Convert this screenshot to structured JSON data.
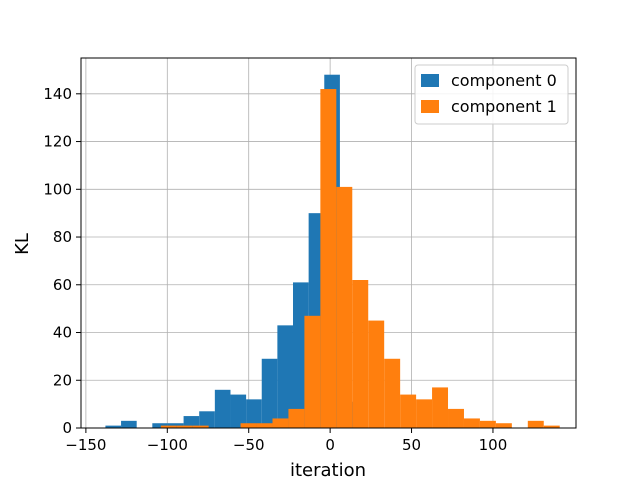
{
  "chart_data": {
    "type": "histogram",
    "xlabel": "iteration",
    "ylabel": "KL",
    "xlim": [
      -153,
      151
    ],
    "ylim": [
      0,
      155
    ],
    "xticks": [
      -150,
      -100,
      -50,
      0,
      50,
      100
    ],
    "xtick_labels": [
      "−150",
      "−100",
      "−50",
      "0",
      "50",
      "100"
    ],
    "yticks": [
      0,
      20,
      40,
      60,
      80,
      100,
      120,
      140
    ],
    "ytick_labels": [
      "0",
      "20",
      "40",
      "60",
      "80",
      "100",
      "120",
      "140"
    ],
    "grid": true,
    "legend_position": "upper right",
    "series": [
      {
        "name": "component 0",
        "color": "#1f77b4",
        "bin_edges": [
          -138,
          -128.4,
          -118.8,
          -109.2,
          -99.6,
          -90,
          -80.4,
          -70.8,
          -61.2,
          -51.6,
          -42,
          -32.4,
          -22.8,
          -13.2,
          -3.6,
          6,
          15.6
        ],
        "counts": [
          1,
          3,
          0,
          2,
          2,
          5,
          7,
          16,
          14,
          12,
          29,
          43,
          61,
          90,
          148,
          11
        ]
      },
      {
        "name": "component 1",
        "color": "#ff7f0e",
        "bin_edges": [
          -104,
          -94.2,
          -84.4,
          -74.6,
          -64.8,
          -55,
          -45.2,
          -35.4,
          -25.6,
          -15.8,
          -6,
          3.8,
          13.6,
          23.4,
          33.2,
          43,
          52.8,
          62.6,
          72.4,
          82.2,
          92,
          101.8,
          111.6,
          121.4,
          131.2,
          141
        ],
        "counts": [
          1,
          1,
          1,
          0,
          0,
          2,
          2,
          4,
          8,
          47,
          142,
          101,
          62,
          45,
          29,
          14,
          12,
          17,
          8,
          4,
          3,
          2,
          0,
          3,
          1,
          0
        ]
      }
    ]
  }
}
